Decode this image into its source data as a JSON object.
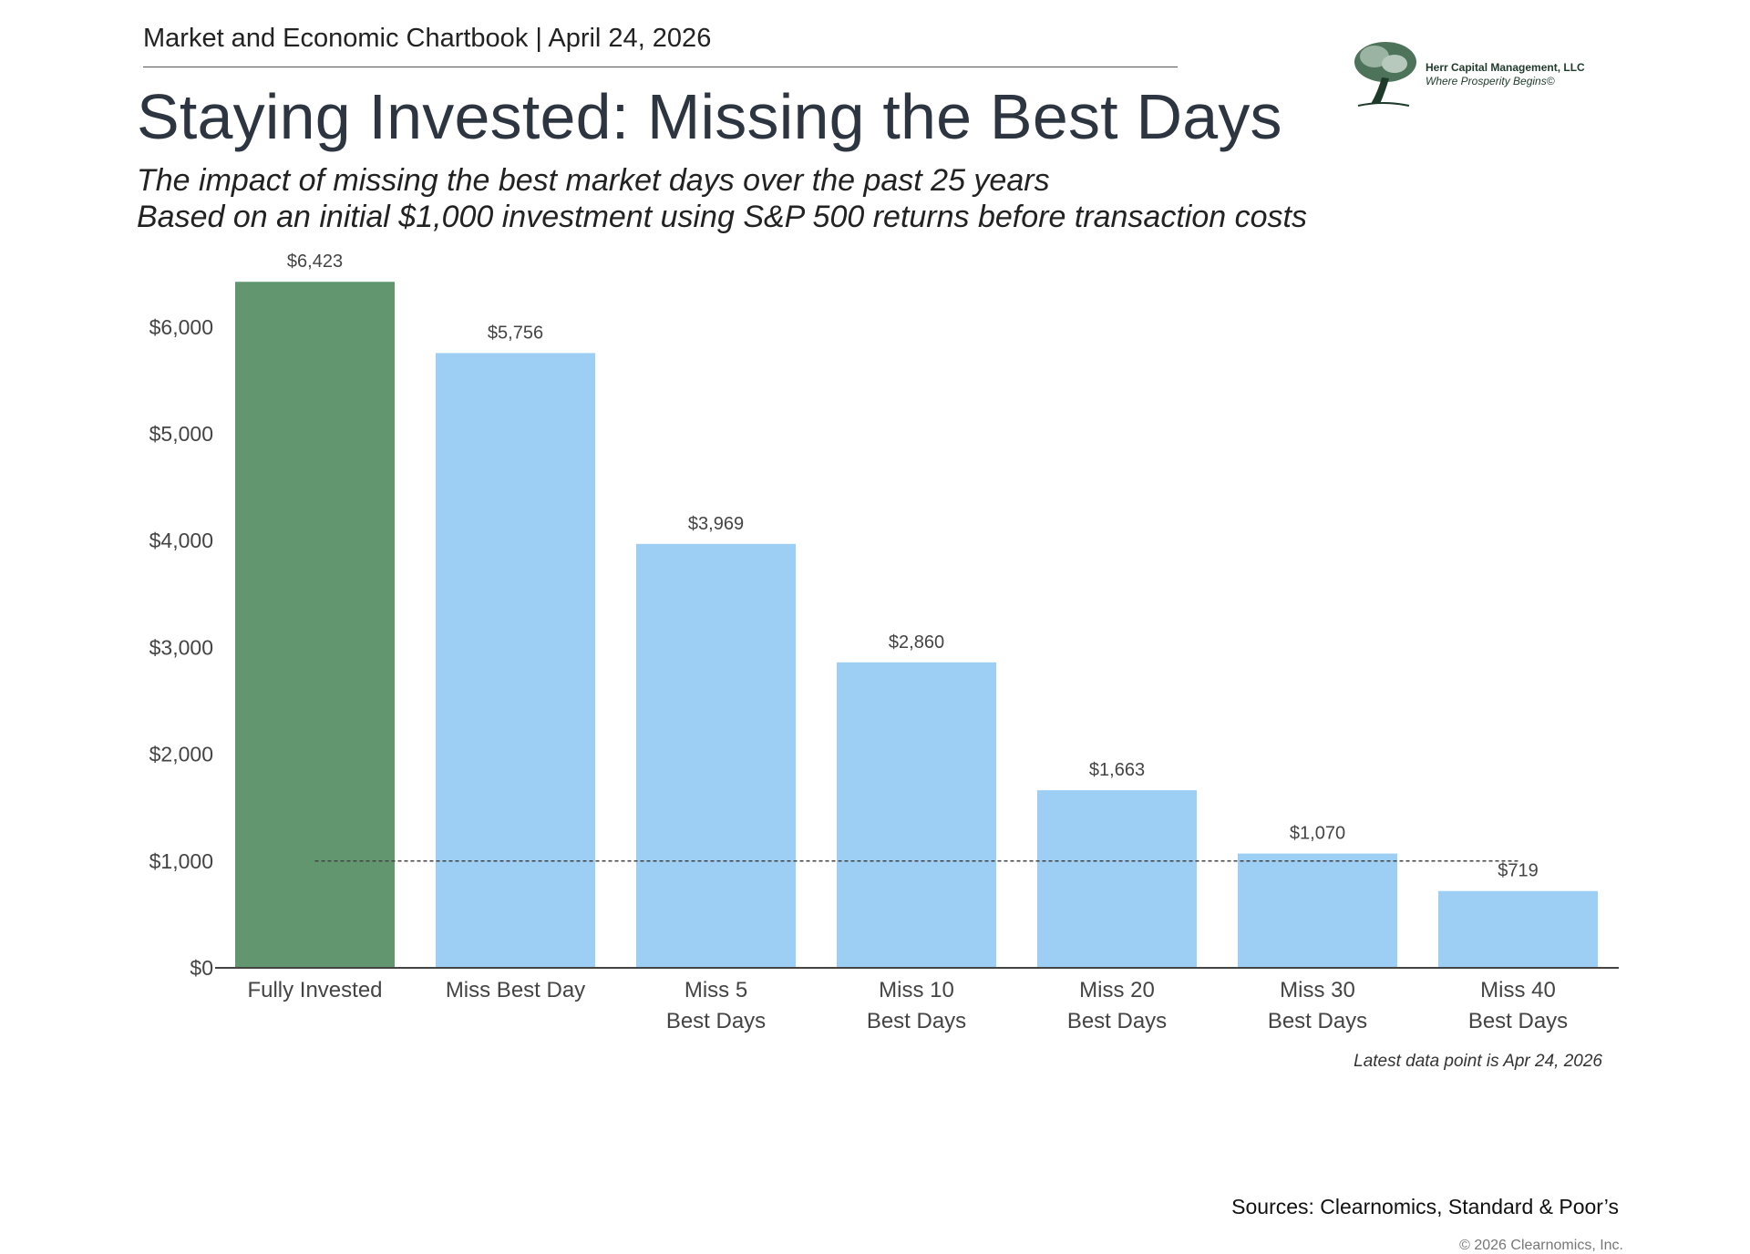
{
  "header": {
    "text": "Market and Economic Chartbook | April 24, 2026"
  },
  "title": "Staying Invested: Missing the Best Days",
  "subtitle": [
    "The impact of missing the best market days over the past 25 years",
    "Based on an initial $1,000 investment using S&P 500 returns before transaction costs"
  ],
  "logo": {
    "name": "Herr Capital Management, LLC",
    "tagline": "Where Prosperity Begins©",
    "color": "#1e3a2a"
  },
  "chart_data": {
    "type": "bar",
    "categories": [
      [
        "Fully Invested"
      ],
      [
        "Miss Best Day"
      ],
      [
        "Miss 5",
        "Best Days"
      ],
      [
        "Miss 10",
        "Best Days"
      ],
      [
        "Miss 20",
        "Best Days"
      ],
      [
        "Miss 30",
        "Best Days"
      ],
      [
        "Miss 40",
        "Best Days"
      ]
    ],
    "values": [
      6423,
      5756,
      3969,
      2860,
      1663,
      1070,
      719
    ],
    "data_labels": [
      "$6,423",
      "$5,756",
      "$3,969",
      "$2,860",
      "$1,663",
      "$1,070",
      "$719"
    ],
    "colors": [
      "#62966f",
      "#9dcff5",
      "#9dcff5",
      "#9dcff5",
      "#9dcff5",
      "#9dcff5",
      "#9dcff5"
    ],
    "ylim": [
      0,
      6423
    ],
    "yticks": [
      0,
      1000,
      2000,
      3000,
      4000,
      5000,
      6000
    ],
    "ytick_labels": [
      "$0",
      "$1,000",
      "$2,000",
      "$3,000",
      "$4,000",
      "$5,000",
      "$6,000"
    ],
    "reference_line": {
      "value": 1000,
      "style": "dashed"
    },
    "grid": false,
    "xlabel": "",
    "ylabel": ""
  },
  "note": "Latest data point is Apr 24, 2026",
  "sources": "Sources: Clearnomics, Standard & Poor’s",
  "copyright": "© 2026 Clearnomics, Inc."
}
